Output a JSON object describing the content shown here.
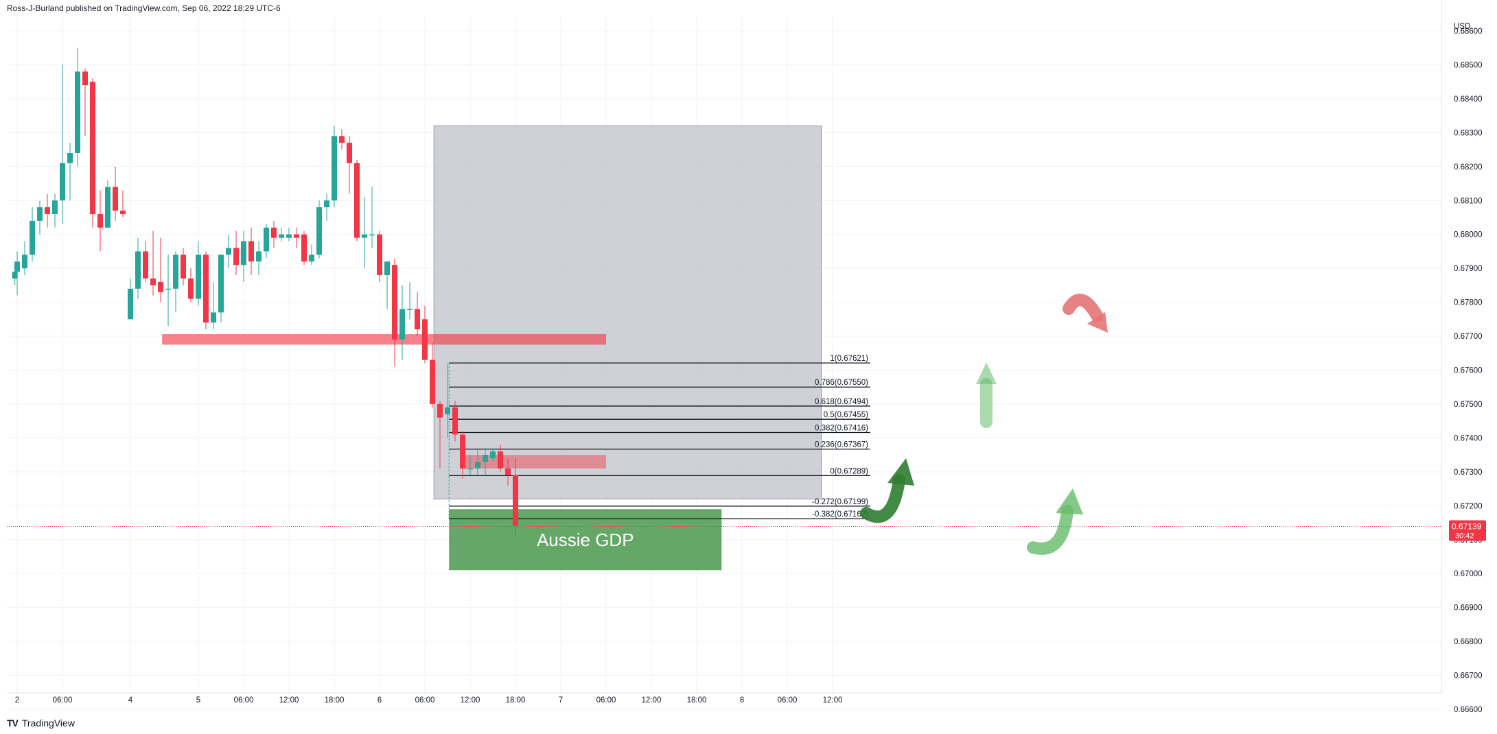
{
  "header": {
    "published": "Ross-J-Burland published on TradingView.com, Sep 06, 2022 18:29 UTC-6"
  },
  "footer": {
    "brand": "TradingView",
    "logo": "tradingview-logo-icon"
  },
  "colors": {
    "up": "#26a69a",
    "down": "#f23645",
    "grid": "#f0f3fa",
    "zone_box": "#b2b5be",
    "resistance": "#f23645",
    "gdp_box": "#388e3c",
    "arrow_red": "#e57373",
    "arrow_green": "#66bb6a",
    "arrow_green_dark": "#2e7d32"
  },
  "chart_data": {
    "type": "candlestick",
    "currency": "USD",
    "y_range": [
      0.6655,
      0.6866
    ],
    "y_ticks": [
      0.686,
      0.685,
      0.684,
      0.683,
      0.682,
      0.681,
      0.68,
      0.679,
      0.678,
      0.677,
      0.676,
      0.675,
      0.674,
      0.673,
      0.672,
      0.671,
      0.67,
      0.669,
      0.668,
      0.667,
      0.666
    ],
    "y_tick_labels": [
      "0.68600",
      "0.68500",
      "0.68400",
      "0.68300",
      "0.68200",
      "0.68100",
      "0.68000",
      "0.67900",
      "0.67800",
      "0.67700",
      "0.67600",
      "0.67500",
      "0.67400",
      "0.67300",
      "0.67200",
      "0.67100",
      "0.67000",
      "0.66900",
      "0.66800",
      "0.66700",
      "0.66600"
    ],
    "x_ticks": [
      {
        "label": "2",
        "idx": 0
      },
      {
        "label": "06:00",
        "idx": 6
      },
      {
        "label": "4",
        "idx": 15
      },
      {
        "label": "5",
        "idx": 24
      },
      {
        "label": "06:00",
        "idx": 30
      },
      {
        "label": "12:00",
        "idx": 36
      },
      {
        "label": "18:00",
        "idx": 42
      },
      {
        "label": "6",
        "idx": 48
      },
      {
        "label": "06:00",
        "idx": 54
      },
      {
        "label": "12:00",
        "idx": 60
      },
      {
        "label": "18:00",
        "idx": 66
      },
      {
        "label": "7",
        "idx": 72
      },
      {
        "label": "06:00",
        "idx": 78
      },
      {
        "label": "12:00",
        "idx": 84
      },
      {
        "label": "18:00",
        "idx": 90
      },
      {
        "label": "8",
        "idx": 96
      },
      {
        "label": "06:00",
        "idx": 102
      },
      {
        "label": "12:00",
        "idx": 108
      }
    ],
    "candles": [
      {
        "i": -0.3,
        "o": 0.6787,
        "h": 0.679,
        "l": 0.6785,
        "c": 0.6789
      },
      {
        "i": 0,
        "o": 0.6789,
        "h": 0.6795,
        "l": 0.6782,
        "c": 0.6792
      },
      {
        "i": 1,
        "o": 0.679,
        "h": 0.6798,
        "l": 0.6788,
        "c": 0.6794
      },
      {
        "i": 2,
        "o": 0.6794,
        "h": 0.6808,
        "l": 0.6792,
        "c": 0.6804
      },
      {
        "i": 3,
        "o": 0.6804,
        "h": 0.681,
        "l": 0.68,
        "c": 0.6808
      },
      {
        "i": 4,
        "o": 0.6808,
        "h": 0.6812,
        "l": 0.6802,
        "c": 0.6806
      },
      {
        "i": 5,
        "o": 0.6806,
        "h": 0.6812,
        "l": 0.6802,
        "c": 0.681
      },
      {
        "i": 6,
        "o": 0.681,
        "h": 0.685,
        "l": 0.6803,
        "c": 0.6821
      },
      {
        "i": 7,
        "o": 0.6821,
        "h": 0.6827,
        "l": 0.681,
        "c": 0.6824
      },
      {
        "i": 8,
        "o": 0.6824,
        "h": 0.6855,
        "l": 0.682,
        "c": 0.6848
      },
      {
        "i": 9,
        "o": 0.6848,
        "h": 0.6849,
        "l": 0.6829,
        "c": 0.6844
      },
      {
        "i": 10,
        "o": 0.6845,
        "h": 0.6846,
        "l": 0.6802,
        "c": 0.6806
      },
      {
        "i": 11,
        "o": 0.6806,
        "h": 0.6813,
        "l": 0.6795,
        "c": 0.6802
      },
      {
        "i": 12,
        "o": 0.6802,
        "h": 0.6816,
        "l": 0.6802,
        "c": 0.6814
      },
      {
        "i": 13,
        "o": 0.6814,
        "h": 0.682,
        "l": 0.6804,
        "c": 0.6807
      },
      {
        "i": 14,
        "o": 0.6807,
        "h": 0.6813,
        "l": 0.6805,
        "c": 0.6806
      },
      {
        "i": 15,
        "o": 0.6775,
        "h": 0.6787,
        "l": 0.6775,
        "c": 0.6784
      },
      {
        "i": 16,
        "o": 0.6784,
        "h": 0.6799,
        "l": 0.6781,
        "c": 0.6795
      },
      {
        "i": 17,
        "o": 0.6795,
        "h": 0.6798,
        "l": 0.6786,
        "c": 0.6787
      },
      {
        "i": 18,
        "o": 0.6787,
        "h": 0.6801,
        "l": 0.6782,
        "c": 0.6785
      },
      {
        "i": 19,
        "o": 0.6786,
        "h": 0.6799,
        "l": 0.678,
        "c": 0.6783
      },
      {
        "i": 20,
        "o": 0.6784,
        "h": 0.6794,
        "l": 0.6773,
        "c": 0.6784
      },
      {
        "i": 21,
        "o": 0.6784,
        "h": 0.6795,
        "l": 0.6777,
        "c": 0.6794
      },
      {
        "i": 22,
        "o": 0.6794,
        "h": 0.6796,
        "l": 0.6785,
        "c": 0.6787
      },
      {
        "i": 23,
        "o": 0.6787,
        "h": 0.679,
        "l": 0.678,
        "c": 0.6781
      },
      {
        "i": 24,
        "o": 0.6781,
        "h": 0.6798,
        "l": 0.6779,
        "c": 0.6794
      },
      {
        "i": 25,
        "o": 0.6794,
        "h": 0.6795,
        "l": 0.6772,
        "c": 0.6774
      },
      {
        "i": 26,
        "o": 0.6774,
        "h": 0.6786,
        "l": 0.6772,
        "c": 0.6777
      },
      {
        "i": 27,
        "o": 0.6777,
        "h": 0.6794,
        "l": 0.6774,
        "c": 0.6794
      },
      {
        "i": 28,
        "o": 0.6794,
        "h": 0.68,
        "l": 0.679,
        "c": 0.6796
      },
      {
        "i": 29,
        "o": 0.6796,
        "h": 0.6801,
        "l": 0.6788,
        "c": 0.6791
      },
      {
        "i": 30,
        "o": 0.6791,
        "h": 0.6801,
        "l": 0.6786,
        "c": 0.6798
      },
      {
        "i": 31,
        "o": 0.6798,
        "h": 0.6802,
        "l": 0.6788,
        "c": 0.6792
      },
      {
        "i": 32,
        "o": 0.6792,
        "h": 0.6798,
        "l": 0.6788,
        "c": 0.6795
      },
      {
        "i": 33,
        "o": 0.6795,
        "h": 0.6803,
        "l": 0.6793,
        "c": 0.6802
      },
      {
        "i": 34,
        "o": 0.6802,
        "h": 0.6804,
        "l": 0.6796,
        "c": 0.6799
      },
      {
        "i": 35,
        "o": 0.6799,
        "h": 0.6802,
        "l": 0.6798,
        "c": 0.68
      },
      {
        "i": 36,
        "o": 0.6799,
        "h": 0.6802,
        "l": 0.6798,
        "c": 0.68
      },
      {
        "i": 37,
        "o": 0.68,
        "h": 0.6802,
        "l": 0.6796,
        "c": 0.6799
      },
      {
        "i": 38,
        "o": 0.68,
        "h": 0.6801,
        "l": 0.6791,
        "c": 0.6792
      },
      {
        "i": 39,
        "o": 0.6792,
        "h": 0.6797,
        "l": 0.6791,
        "c": 0.6794
      },
      {
        "i": 40,
        "o": 0.6794,
        "h": 0.681,
        "l": 0.6793,
        "c": 0.6808
      },
      {
        "i": 41,
        "o": 0.6808,
        "h": 0.6812,
        "l": 0.6804,
        "c": 0.681
      },
      {
        "i": 42,
        "o": 0.681,
        "h": 0.6832,
        "l": 0.6808,
        "c": 0.6829
      },
      {
        "i": 43,
        "o": 0.6829,
        "h": 0.6831,
        "l": 0.6825,
        "c": 0.6827
      },
      {
        "i": 44,
        "o": 0.6827,
        "h": 0.6829,
        "l": 0.6812,
        "c": 0.6821
      },
      {
        "i": 45,
        "o": 0.6821,
        "h": 0.6822,
        "l": 0.6798,
        "c": 0.6799
      },
      {
        "i": 46,
        "o": 0.6799,
        "h": 0.6811,
        "l": 0.679,
        "c": 0.68
      },
      {
        "i": 47,
        "o": 0.68,
        "h": 0.6814,
        "l": 0.6796,
        "c": 0.68
      },
      {
        "i": 48,
        "o": 0.68,
        "h": 0.6801,
        "l": 0.6786,
        "c": 0.6788
      },
      {
        "i": 49,
        "o": 0.6788,
        "h": 0.6791,
        "l": 0.6778,
        "c": 0.6792
      },
      {
        "i": 50,
        "o": 0.6791,
        "h": 0.6793,
        "l": 0.6761,
        "c": 0.6769
      },
      {
        "i": 51,
        "o": 0.6769,
        "h": 0.6785,
        "l": 0.6763,
        "c": 0.6778
      },
      {
        "i": 52,
        "o": 0.6778,
        "h": 0.6786,
        "l": 0.6775,
        "c": 0.6778
      },
      {
        "i": 53,
        "o": 0.6778,
        "h": 0.6783,
        "l": 0.677,
        "c": 0.6772
      },
      {
        "i": 54,
        "o": 0.6775,
        "h": 0.6779,
        "l": 0.6762,
        "c": 0.6763
      },
      {
        "i": 55,
        "o": 0.6763,
        "h": 0.6768,
        "l": 0.6749,
        "c": 0.675
      },
      {
        "i": 56,
        "o": 0.675,
        "h": 0.6751,
        "l": 0.6731,
        "c": 0.6746
      },
      {
        "i": 57,
        "o": 0.6747,
        "h": 0.6762,
        "l": 0.674,
        "c": 0.6749
      },
      {
        "i": 58,
        "o": 0.6749,
        "h": 0.6751,
        "l": 0.6739,
        "c": 0.6741
      },
      {
        "i": 59,
        "o": 0.6741,
        "h": 0.6742,
        "l": 0.6728,
        "c": 0.6731
      },
      {
        "i": 60,
        "o": 0.6731,
        "h": 0.6735,
        "l": 0.6729,
        "c": 0.6731
      },
      {
        "i": 61,
        "o": 0.6731,
        "h": 0.6737,
        "l": 0.6729,
        "c": 0.6733
      },
      {
        "i": 62,
        "o": 0.6733,
        "h": 0.6737,
        "l": 0.6729,
        "c": 0.6735
      },
      {
        "i": 63,
        "o": 0.6734,
        "h": 0.6737,
        "l": 0.6733,
        "c": 0.6736
      },
      {
        "i": 64,
        "o": 0.6736,
        "h": 0.6738,
        "l": 0.673,
        "c": 0.6731
      },
      {
        "i": 65,
        "o": 0.6731,
        "h": 0.6734,
        "l": 0.6726,
        "c": 0.6729
      },
      {
        "i": 66,
        "o": 0.6729,
        "h": 0.6734,
        "l": 0.6711,
        "c": 0.6714
      }
    ],
    "current_price": {
      "value": 0.67139,
      "label": "0.67139",
      "countdown": "30:42"
    },
    "fibonacci": {
      "from_idx": 57.2,
      "to_idx": 113,
      "levels": [
        {
          "value": 0.67621,
          "label": "1(0.67621)"
        },
        {
          "value": 0.6755,
          "label": "0.786(0.67550)"
        },
        {
          "value": 0.67494,
          "label": "0.618(0.67494)"
        },
        {
          "value": 0.67455,
          "label": "0.5(0.67455)"
        },
        {
          "value": 0.67416,
          "label": "0.382(0.67416)"
        },
        {
          "value": 0.67367,
          "label": "0.236(0.67367)"
        },
        {
          "value": 0.67289,
          "label": "0(0.67289)"
        },
        {
          "value": 0.67199,
          "label": "-0.272(0.67199)"
        },
        {
          "value": 0.67162,
          "label": "-0.382(0.67162)"
        }
      ]
    },
    "zones": {
      "range_box": {
        "x0": 55.2,
        "x1": 106.5,
        "y0": 0.6832,
        "y1": 0.6722
      },
      "resistance_band": {
        "x0": 19.2,
        "x1": 78,
        "y0": 0.67706,
        "y1": 0.67675
      },
      "support_band": {
        "x0": 59.2,
        "x1": 78,
        "y0": 0.6735,
        "y1": 0.6731
      },
      "gdp_box": {
        "x0": 57.2,
        "x1": 93.3,
        "y0": 0.6719,
        "y1": 0.6701,
        "label": "Aussie GDP"
      }
    }
  }
}
